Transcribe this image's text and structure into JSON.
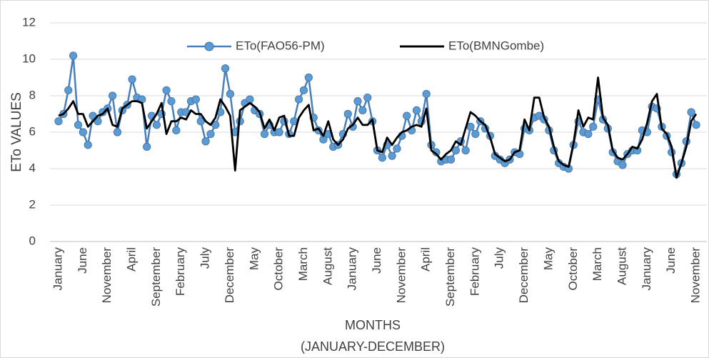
{
  "chart_data": {
    "type": "line",
    "ylabel": "ETo VALUES",
    "xlabel": [
      "MONTHS",
      "(JANUARY-DECEMBER)"
    ],
    "categories": [
      "January",
      null,
      null,
      null,
      null,
      "June",
      null,
      null,
      null,
      null,
      "November",
      null,
      null,
      null,
      null,
      "April",
      null,
      null,
      null,
      null,
      "September",
      null,
      null,
      null,
      null,
      "February",
      null,
      null,
      null,
      null,
      "July",
      null,
      null,
      null,
      null,
      "December",
      null,
      null,
      null,
      null,
      "May",
      null,
      null,
      null,
      null,
      "October",
      null,
      null,
      null,
      null,
      "March",
      null,
      null,
      null,
      null,
      "August",
      null,
      null,
      null,
      null,
      "January",
      null,
      null,
      null,
      null,
      "June",
      null,
      null,
      null,
      null,
      "November",
      null,
      null,
      null,
      null,
      "April",
      null,
      null,
      null,
      null,
      "September",
      null,
      null,
      null,
      null,
      "February",
      null,
      null,
      null,
      null,
      "July",
      null,
      null,
      null,
      null,
      "December",
      null,
      null,
      null,
      null,
      "May",
      null,
      null,
      null,
      null,
      "October",
      null,
      null,
      null,
      null,
      "March",
      null,
      null,
      null,
      null,
      "August",
      null,
      null,
      null,
      null,
      "January",
      null,
      null,
      null,
      null,
      "June",
      null,
      null,
      null,
      null,
      "November"
    ],
    "series": [
      {
        "name": "ETo(FAO56-PM)",
        "color": "#4a7ebb",
        "marker": true,
        "values": [
          6.6,
          7.0,
          8.3,
          10.2,
          6.4,
          6.0,
          5.3,
          6.9,
          6.6,
          7.1,
          7.3,
          8.0,
          6.0,
          7.2,
          7.5,
          8.9,
          7.9,
          7.8,
          5.2,
          6.9,
          6.4,
          7.0,
          8.3,
          7.7,
          6.1,
          7.1,
          7.1,
          7.7,
          7.8,
          6.6,
          5.5,
          5.9,
          6.4,
          7.1,
          9.5,
          8.1,
          6.0,
          6.6,
          7.6,
          7.8,
          7.2,
          7.0,
          5.9,
          6.4,
          6.0,
          6.0,
          6.6,
          5.9,
          6.6,
          7.8,
          8.3,
          9.0,
          6.8,
          6.1,
          5.6,
          5.9,
          5.2,
          5.3,
          5.9,
          7.0,
          6.3,
          7.7,
          7.2,
          7.9,
          6.6,
          5.0,
          4.6,
          5.3,
          4.7,
          5.1,
          5.8,
          6.9,
          6.1,
          7.2,
          6.6,
          8.1,
          5.3,
          4.9,
          4.4,
          4.5,
          4.5,
          5.0,
          5.5,
          5.0,
          6.3,
          5.9,
          6.6,
          6.2,
          5.8,
          4.7,
          4.5,
          4.3,
          4.5,
          4.9,
          4.8,
          6.2,
          6.1,
          6.8,
          6.9,
          6.7,
          6.1,
          5.0,
          4.3,
          4.1,
          4.0,
          5.3,
          6.6,
          6.0,
          5.9,
          6.3,
          7.8,
          6.7,
          6.2,
          4.9,
          4.4,
          4.2,
          4.8,
          5.0,
          5.0,
          6.1,
          6.0,
          7.4,
          7.3,
          6.3,
          5.8,
          4.9,
          3.7,
          4.3,
          5.5,
          7.1,
          6.4
        ]
      },
      {
        "name": "ETo(BMNGombe)",
        "color": "#000000",
        "marker": false,
        "values": [
          6.9,
          7.0,
          7.3,
          7.7,
          7.0,
          7.0,
          6.3,
          6.6,
          6.9,
          7.0,
          7.3,
          6.4,
          6.3,
          7.3,
          7.5,
          7.7,
          7.7,
          7.6,
          6.2,
          6.6,
          7.0,
          7.6,
          5.9,
          6.6,
          6.6,
          6.8,
          6.7,
          7.2,
          7.0,
          7.0,
          6.6,
          6.4,
          6.8,
          7.8,
          7.4,
          6.9,
          3.9,
          7.2,
          7.4,
          7.6,
          7.4,
          7.1,
          6.2,
          6.7,
          6.1,
          6.8,
          6.9,
          5.8,
          5.8,
          6.8,
          7.2,
          7.5,
          6.1,
          6.2,
          5.8,
          6.6,
          5.6,
          5.3,
          5.6,
          6.2,
          6.4,
          6.8,
          6.4,
          6.4,
          6.7,
          5.0,
          4.9,
          5.7,
          5.3,
          5.7,
          6.0,
          6.1,
          6.3,
          6.4,
          6.3,
          7.3,
          5.0,
          4.8,
          4.5,
          4.8,
          5.0,
          5.5,
          5.3,
          6.2,
          7.1,
          6.9,
          6.6,
          6.4,
          5.7,
          4.8,
          4.6,
          4.4,
          4.5,
          4.9,
          5.0,
          6.7,
          6.1,
          7.9,
          7.9,
          6.8,
          6.3,
          5.2,
          4.4,
          4.2,
          4.1,
          5.4,
          7.2,
          6.3,
          6.8,
          6.7,
          9.0,
          6.8,
          6.4,
          5.0,
          4.6,
          4.5,
          4.8,
          5.2,
          5.1,
          5.6,
          6.5,
          7.7,
          8.1,
          6.2,
          5.9,
          5.2,
          3.5,
          4.3,
          5.2,
          6.6,
          7.0
        ]
      }
    ],
    "ylim": [
      0,
      12
    ],
    "yticks": [
      0,
      2,
      4,
      6,
      8,
      10,
      12
    ],
    "grid": true,
    "legend": "top"
  }
}
